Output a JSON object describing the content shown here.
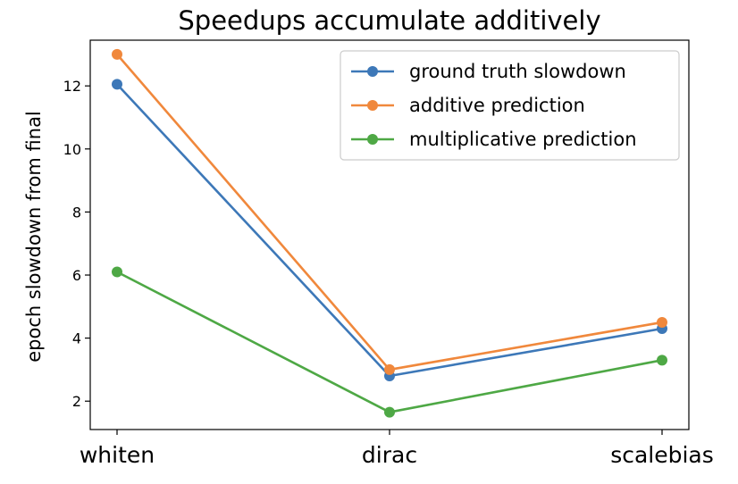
{
  "chart_data": {
    "type": "line",
    "title": "Speedups accumulate additively",
    "xlabel": "",
    "ylabel": "epoch slowdown from final",
    "categories": [
      "whiten",
      "dirac",
      "scalebias"
    ],
    "ylim": [
      1.1,
      13.45
    ],
    "yticks": [
      2,
      4,
      6,
      8,
      10,
      12
    ],
    "grid": false,
    "legend_position": "top-right",
    "series": [
      {
        "name": "ground truth slowdown",
        "color": "#3d78b8",
        "marker": "circle",
        "values": [
          12.05,
          2.8,
          4.3
        ]
      },
      {
        "name": "additive prediction",
        "color": "#f0883c",
        "marker": "circle",
        "values": [
          13.0,
          3.0,
          4.5
        ]
      },
      {
        "name": "multiplicative prediction",
        "color": "#4ea845",
        "marker": "circle",
        "values": [
          6.1,
          1.65,
          3.3
        ]
      }
    ]
  }
}
